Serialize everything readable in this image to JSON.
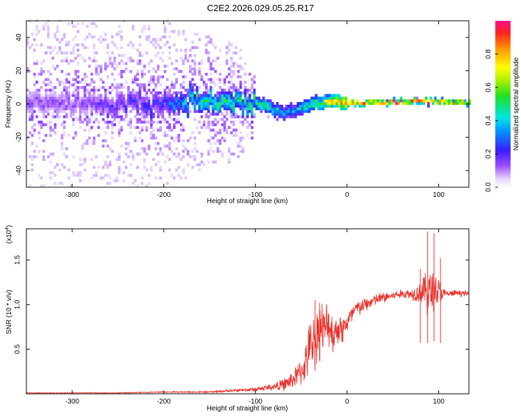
{
  "figure": {
    "title": "C2E2.2026.029.05.25.R17"
  },
  "chart_data": [
    {
      "type": "heatmap",
      "title": "C2E2.2026.029.05.25.R17",
      "xlabel": "Height of straight line (km)",
      "ylabel": "Frequency (Hz)",
      "xlim": [
        -350,
        133
      ],
      "ylim": [
        -50,
        50
      ],
      "x_ticks": [
        "-300",
        "-200",
        "-100",
        "0",
        "100"
      ],
      "y_ticks": [
        "-40",
        "-20",
        "0",
        "20",
        "40"
      ],
      "colorbar": {
        "label": "Normalized spectral amplitude",
        "range": [
          0.0,
          1.0
        ],
        "ticks": [
          "0.0",
          "0.2",
          "0.4",
          "0.6",
          "0.8"
        ]
      },
      "signal_trace": {
        "x": [
          -350,
          -300,
          -250,
          -200,
          -175,
          -150,
          -120,
          -100,
          -90,
          -80,
          -70,
          -60,
          -50,
          -40,
          -30,
          -20,
          -10,
          0,
          20,
          50,
          80,
          100,
          133
        ],
        "center_frequency": [
          0,
          0,
          0,
          0,
          1,
          1,
          1,
          0,
          -2,
          -4,
          -6,
          -5,
          -3,
          -1,
          0,
          1,
          0,
          0,
          0,
          0.5,
          1,
          0.5,
          0
        ],
        "peak_amplitude": [
          0.15,
          0.15,
          0.2,
          0.25,
          0.45,
          0.5,
          0.5,
          0.5,
          0.55,
          0.45,
          0.35,
          0.35,
          0.45,
          0.55,
          0.6,
          0.8,
          0.9,
          0.95,
          0.95,
          0.95,
          0.9,
          0.85,
          0.9
        ],
        "noise_spread_hz": [
          50,
          50,
          50,
          50,
          45,
          40,
          35,
          12,
          8,
          8,
          8,
          6,
          5,
          4,
          3,
          2,
          2,
          2,
          2,
          2,
          2,
          2,
          2
        ]
      }
    },
    {
      "type": "line",
      "xlabel": "Height of straight line (km)",
      "ylabel": "SNR (10 * v/v)",
      "y_multiplier_label": "(x10",
      "y_multiplier_exp": "4",
      "y_multiplier_close": ")",
      "xlim": [
        -350,
        133
      ],
      "ylim": [
        0,
        1.85
      ],
      "x_ticks": [
        "-300",
        "-200",
        "-100",
        "0",
        "100"
      ],
      "y_ticks": [
        "0.5",
        "1.0",
        "1.5"
      ],
      "series": [
        {
          "color": "#e8302a",
          "x": [
            -350,
            -300,
            -250,
            -200,
            -150,
            -120,
            -100,
            -80,
            -70,
            -60,
            -50,
            -45,
            -40,
            -35,
            -30,
            -25,
            -20,
            -15,
            -10,
            -5,
            0,
            10,
            20,
            30,
            40,
            50,
            60,
            70,
            80,
            85,
            90,
            95,
            100,
            105,
            110,
            120,
            133
          ],
          "y": [
            0.01,
            0.01,
            0.01,
            0.02,
            0.02,
            0.04,
            0.05,
            0.08,
            0.1,
            0.15,
            0.25,
            0.35,
            0.55,
            0.6,
            0.75,
            0.7,
            0.8,
            0.65,
            0.75,
            0.72,
            0.8,
            0.95,
            1.0,
            1.05,
            1.08,
            1.1,
            1.12,
            1.12,
            1.14,
            1.15,
            1.13,
            1.18,
            1.15,
            1.12,
            1.12,
            1.13,
            1.12
          ],
          "noise": [
            0.005,
            0.005,
            0.006,
            0.008,
            0.01,
            0.02,
            0.03,
            0.05,
            0.08,
            0.12,
            0.18,
            0.25,
            0.35,
            0.38,
            0.4,
            0.35,
            0.3,
            0.25,
            0.22,
            0.2,
            0.15,
            0.12,
            0.1,
            0.08,
            0.08,
            0.06,
            0.06,
            0.08,
            0.15,
            0.25,
            0.35,
            0.3,
            0.2,
            0.08,
            0.05,
            0.04,
            0.04
          ],
          "peak_events": [
            {
              "x": -35,
              "y": 1.05
            },
            {
              "x": -30,
              "y": 1.02
            },
            {
              "x": 80,
              "y": 1.4
            },
            {
              "x": 88,
              "y": 1.82
            },
            {
              "x": 95,
              "y": 1.8
            },
            {
              "x": 102,
              "y": 1.52
            }
          ]
        }
      ]
    }
  ]
}
